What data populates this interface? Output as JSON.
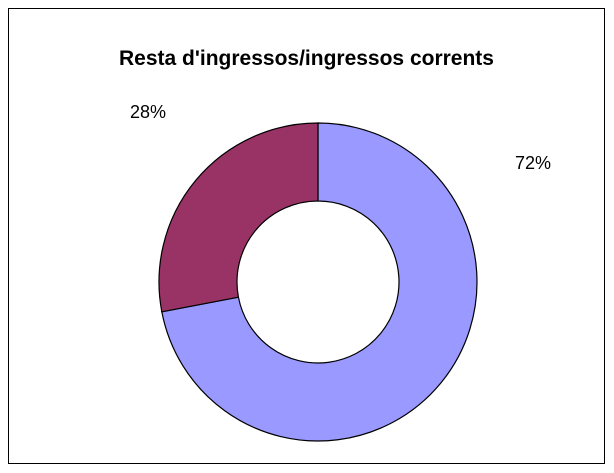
{
  "chart_data": {
    "type": "pie",
    "variant": "donut",
    "title": "Resta d'ingressos/ingressos corrents",
    "categories": [
      "",
      ""
    ],
    "values": [
      72,
      28
    ],
    "labels": [
      "72%",
      "28%"
    ],
    "colors": [
      "#9999ff",
      "#993366"
    ],
    "legend": "none",
    "start_angle_deg": 0,
    "direction": "clockwise"
  }
}
